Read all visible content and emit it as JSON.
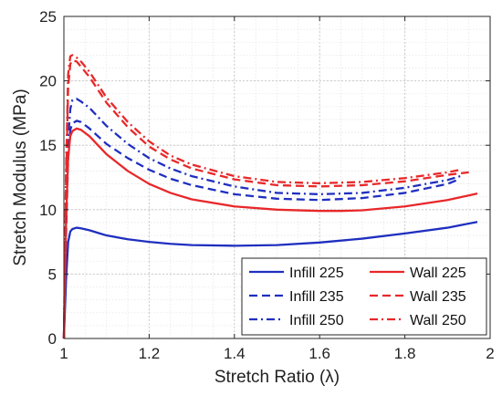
{
  "chart_data": {
    "type": "line",
    "title": "",
    "xlabel": "Stretch Ratio (λ)",
    "ylabel": "Stretch Modulus (MPa)",
    "xlim": [
      1,
      2
    ],
    "ylim": [
      0,
      25
    ],
    "xticks": [
      "1",
      "1.2",
      "1.4",
      "1.6",
      "1.8",
      "2"
    ],
    "yticks": [
      "0",
      "5",
      "10",
      "15",
      "20",
      "25"
    ],
    "grid": true,
    "legend_position": "bottom-right",
    "legend_columns": 2,
    "series": [
      {
        "name": "Infill 225",
        "color": "#1f2fbf",
        "dash": "solid",
        "x": [
          1.0,
          1.005,
          1.01,
          1.015,
          1.02,
          1.03,
          1.04,
          1.06,
          1.08,
          1.1,
          1.15,
          1.2,
          1.25,
          1.3,
          1.4,
          1.5,
          1.6,
          1.7,
          1.8,
          1.9,
          1.97
        ],
        "y": [
          0,
          4.5,
          7.5,
          8.3,
          8.5,
          8.6,
          8.55,
          8.4,
          8.2,
          8.0,
          7.7,
          7.5,
          7.35,
          7.25,
          7.2,
          7.25,
          7.45,
          7.75,
          8.15,
          8.6,
          9.05
        ]
      },
      {
        "name": "Infill 235",
        "color": "#1f2fbf",
        "dash": "dashed",
        "x": [
          1.0,
          1.005,
          1.01,
          1.015,
          1.02,
          1.03,
          1.04,
          1.06,
          1.08,
          1.1,
          1.15,
          1.2,
          1.25,
          1.3,
          1.4,
          1.5,
          1.6,
          1.7,
          1.8,
          1.9,
          1.93
        ],
        "y": [
          0,
          8,
          14,
          16.2,
          16.7,
          16.9,
          16.8,
          16.3,
          15.7,
          15.1,
          14.0,
          13.1,
          12.4,
          11.9,
          11.2,
          10.85,
          10.75,
          10.9,
          11.3,
          12.0,
          12.4
        ]
      },
      {
        "name": "Infill 250",
        "color": "#1f2fbf",
        "dash": "dashdot",
        "x": [
          1.0,
          1.005,
          1.01,
          1.015,
          1.02,
          1.03,
          1.04,
          1.06,
          1.08,
          1.1,
          1.15,
          1.2,
          1.25,
          1.3,
          1.4,
          1.5,
          1.6,
          1.7,
          1.8,
          1.9,
          1.93
        ],
        "y": [
          0,
          9,
          15.5,
          17.8,
          18.5,
          18.6,
          18.4,
          17.9,
          17.2,
          16.5,
          15.1,
          14.0,
          13.2,
          12.6,
          11.8,
          11.3,
          11.2,
          11.3,
          11.7,
          12.3,
          12.6
        ]
      },
      {
        "name": "Wall 225",
        "color": "#e8282a",
        "dash": "solid",
        "x": [
          1.0,
          1.005,
          1.01,
          1.015,
          1.02,
          1.03,
          1.04,
          1.06,
          1.08,
          1.1,
          1.15,
          1.2,
          1.25,
          1.3,
          1.4,
          1.5,
          1.6,
          1.65,
          1.7,
          1.8,
          1.9,
          1.97
        ],
        "y": [
          0,
          9,
          14,
          15.7,
          16.1,
          16.3,
          16.2,
          15.7,
          15.0,
          14.3,
          13.0,
          12.0,
          11.3,
          10.8,
          10.25,
          10.0,
          9.9,
          9.9,
          9.95,
          10.25,
          10.75,
          11.25
        ]
      },
      {
        "name": "Wall 235",
        "color": "#e8282a",
        "dash": "dashed",
        "x": [
          1.0,
          1.005,
          1.01,
          1.015,
          1.02,
          1.03,
          1.04,
          1.06,
          1.08,
          1.1,
          1.15,
          1.2,
          1.25,
          1.3,
          1.4,
          1.5,
          1.6,
          1.7,
          1.8,
          1.9,
          1.95
        ],
        "y": [
          0,
          12,
          19.5,
          21.3,
          21.6,
          21.5,
          21.1,
          20.3,
          19.3,
          18.3,
          16.4,
          14.9,
          13.9,
          13.2,
          12.35,
          11.9,
          11.8,
          11.9,
          12.2,
          12.7,
          12.9
        ]
      },
      {
        "name": "Wall 250",
        "color": "#e8282a",
        "dash": "dashdot",
        "x": [
          1.0,
          1.005,
          1.01,
          1.015,
          1.02,
          1.03,
          1.04,
          1.06,
          1.08,
          1.1,
          1.15,
          1.2,
          1.25,
          1.3,
          1.4,
          1.5,
          1.6,
          1.7,
          1.8,
          1.9,
          1.93
        ],
        "y": [
          0,
          13,
          20.5,
          21.9,
          22.0,
          21.8,
          21.5,
          20.7,
          19.7,
          18.7,
          16.8,
          15.3,
          14.2,
          13.5,
          12.6,
          12.15,
          12.05,
          12.15,
          12.45,
          12.9,
          13.1
        ]
      }
    ]
  },
  "legend_title_column_order": [
    "Infill 225",
    "Wall 225",
    "Infill 235",
    "Wall 235",
    "Infill 250",
    "Wall 250"
  ]
}
